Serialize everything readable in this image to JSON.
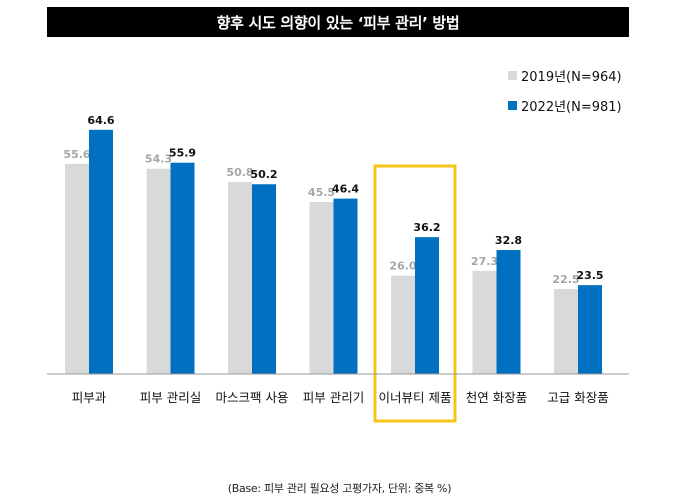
{
  "colors": {
    "series_2019": "#d9d9d9",
    "series_2022": "#0070c0",
    "highlight_border": "#f5c518",
    "title_bg": "#000000"
  },
  "chart_data": {
    "type": "bar",
    "title": "향후 시도 의향이 있는 ‘피부 관리’ 방법",
    "categories": [
      "피부과",
      "피부 관리실",
      "마스크팩 사용",
      "피부 관리기",
      "이너뷰티 제품",
      "천연 화장품",
      "고급 화장품"
    ],
    "series": [
      {
        "name": "2019년(N=964)",
        "values": [
          55.6,
          54.3,
          50.8,
          45.5,
          26.0,
          27.3,
          22.5
        ]
      },
      {
        "name": "2022년(N=981)",
        "values": [
          64.6,
          55.9,
          50.2,
          46.4,
          36.2,
          32.8,
          23.5
        ]
      }
    ],
    "value_labels": [
      [
        "55.6",
        "54.3",
        "50.8",
        "45.5",
        "26.0",
        "27.3",
        "22.5"
      ],
      [
        "64.6",
        "55.9",
        "50.2",
        "46.4",
        "36.2",
        "32.8",
        "23.5"
      ]
    ],
    "highlighted_category": "이너뷰티 제품",
    "ylim": [
      0,
      75
    ],
    "grid": false,
    "legend": "top-right",
    "footnote": "(Base: 피부 관리 필요성 고평가자, 단위: 중복 %)"
  }
}
